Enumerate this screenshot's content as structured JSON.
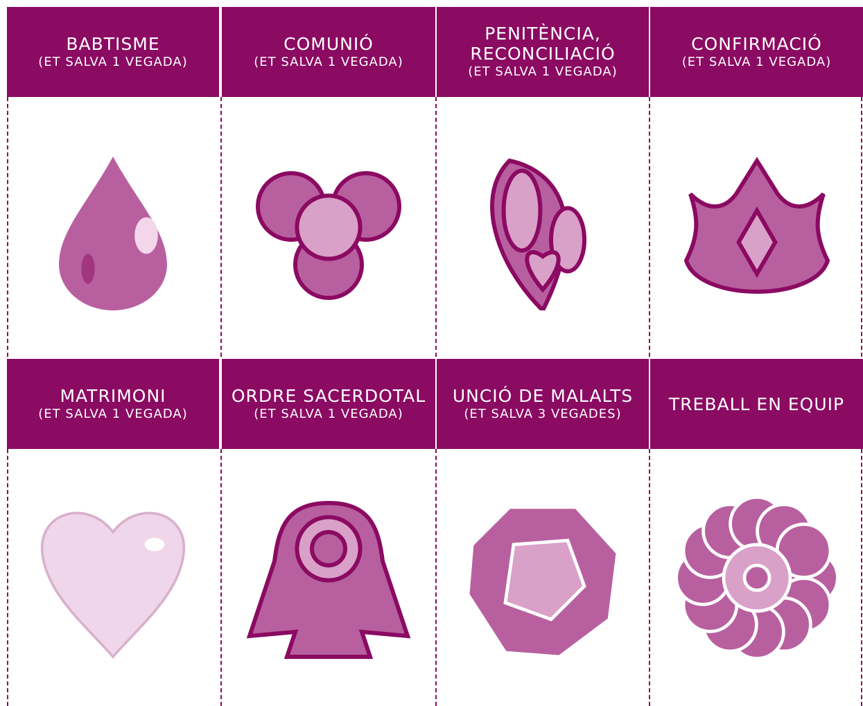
{
  "cards": [
    {
      "title_lines": [
        "BABTISME"
      ],
      "subtitle": "(ET SALVA 1 VEGADA)"
    },
    {
      "title_lines": [
        "COMUNIÓ"
      ],
      "subtitle": "(ET SALVA 1 VEGADA)"
    },
    {
      "title_lines": [
        "PENITÈNCIA,",
        "RECONCILIACIÓ"
      ],
      "subtitle": "(ET SALVA 1 VEGADA)"
    },
    {
      "title_lines": [
        "CONFIRMACIÓ"
      ],
      "subtitle": "(ET SALVA 1 VEGADA)"
    },
    {
      "title_lines": [
        "MATRIMONI"
      ],
      "subtitle": "(ET SALVA 1 VEGADA)"
    },
    {
      "title_lines": [
        "ORDRE SACERDOTAL"
      ],
      "subtitle": "(ET SALVA 1 VEGADA)"
    },
    {
      "title_lines": [
        "UNCIÓ DE MALALTS"
      ],
      "subtitle": "(ET SALVA 3 VEGADES)"
    },
    {
      "title_lines": [
        "TREBALL EN EQUIP"
      ]
    }
  ]
}
